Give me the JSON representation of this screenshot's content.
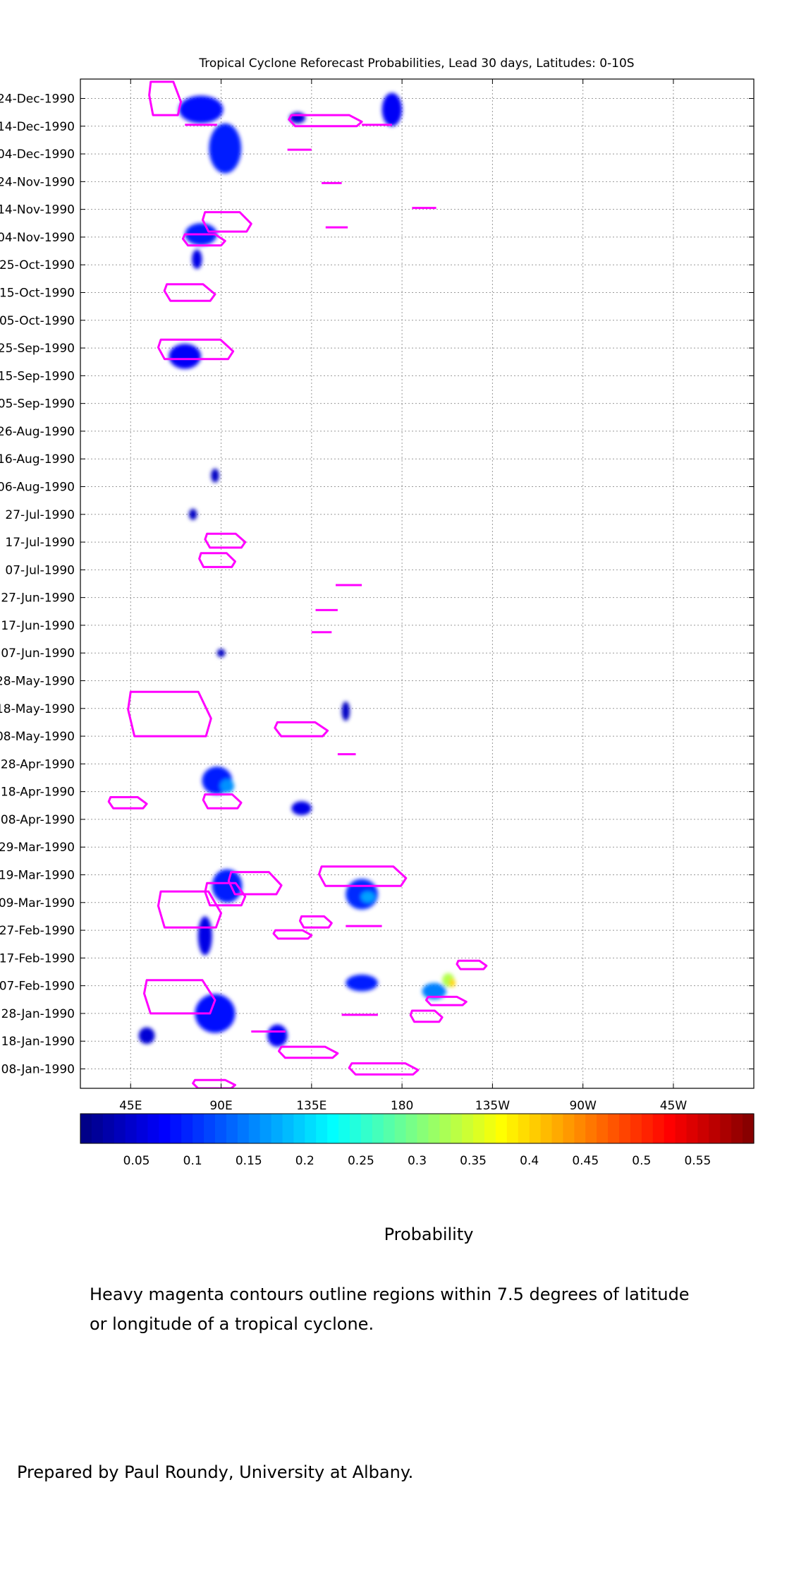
{
  "chart_data": {
    "type": "heatmap",
    "title": "Tropical Cyclone Reforecast Probabilities, Lead 30 days, Latitudes: 0-10S",
    "xlabel": "",
    "ylabel": "",
    "x_ticks": [
      "45E",
      "90E",
      "135E",
      "180",
      "135W",
      "90W",
      "45W"
    ],
    "x_tick_lon": [
      45,
      90,
      135,
      180,
      225,
      270,
      315
    ],
    "xlim_lon": [
      20,
      355
    ],
    "ylim_dates": [
      "1990-01-01",
      "1990-12-31"
    ],
    "y_ticks": [
      "08-Jan-1990",
      "18-Jan-1990",
      "28-Jan-1990",
      "07-Feb-1990",
      "17-Feb-1990",
      "27-Feb-1990",
      "09-Mar-1990",
      "19-Mar-1990",
      "29-Mar-1990",
      "08-Apr-1990",
      "18-Apr-1990",
      "28-Apr-1990",
      "08-May-1990",
      "18-May-1990",
      "28-May-1990",
      "07-Jun-1990",
      "17-Jun-1990",
      "27-Jun-1990",
      "07-Jul-1990",
      "17-Jul-1990",
      "27-Jul-1990",
      "06-Aug-1990",
      "16-Aug-1990",
      "26-Aug-1990",
      "05-Sep-1990",
      "15-Sep-1990",
      "25-Sep-1990",
      "05-Oct-1990",
      "15-Oct-1990",
      "25-Oct-1990",
      "04-Nov-1990",
      "14-Nov-1990",
      "24-Nov-1990",
      "04-Dec-1990",
      "14-Dec-1990",
      "24-Dec-1990"
    ],
    "grid": true,
    "colorbar": {
      "labels": [
        "0.05",
        "0.1",
        "0.15",
        "0.2",
        "0.25",
        "0.3",
        "0.35",
        "0.4",
        "0.45",
        "0.5",
        "0.55"
      ],
      "label_values": [
        0.05,
        0.1,
        0.15,
        0.2,
        0.25,
        0.3,
        0.35,
        0.4,
        0.45,
        0.5,
        0.55
      ],
      "range": [
        0.0,
        0.6
      ],
      "colormap": "jet",
      "title": "Probability"
    },
    "probability_regions": [
      {
        "lon": 80,
        "date": "1990-12-20",
        "dlon": 22,
        "days": 10,
        "p": 0.08
      },
      {
        "lon": 92,
        "date": "1990-12-06",
        "dlon": 16,
        "days": 18,
        "p": 0.09
      },
      {
        "lon": 175,
        "date": "1990-12-20",
        "dlon": 10,
        "days": 12,
        "p": 0.07
      },
      {
        "lon": 128,
        "date": "1990-12-17",
        "dlon": 8,
        "days": 4,
        "p": 0.05
      },
      {
        "lon": 80,
        "date": "1990-11-05",
        "dlon": 16,
        "days": 8,
        "p": 0.09
      },
      {
        "lon": 78,
        "date": "1990-10-27",
        "dlon": 5,
        "days": 7,
        "p": 0.06
      },
      {
        "lon": 72,
        "date": "1990-09-22",
        "dlon": 16,
        "days": 9,
        "p": 0.07
      },
      {
        "lon": 87,
        "date": "1990-08-10",
        "dlon": 4,
        "days": 5,
        "p": 0.04
      },
      {
        "lon": 76,
        "date": "1990-07-27",
        "dlon": 4,
        "days": 4,
        "p": 0.04
      },
      {
        "lon": 90,
        "date": "1990-06-07",
        "dlon": 4,
        "days": 3,
        "p": 0.04
      },
      {
        "lon": 152,
        "date": "1990-05-17",
        "dlon": 4,
        "days": 7,
        "p": 0.04
      },
      {
        "lon": 88,
        "date": "1990-04-22",
        "dlon": 15,
        "days": 10,
        "p": 0.09
      },
      {
        "lon": 93,
        "date": "1990-04-20",
        "dlon": 7,
        "days": 5,
        "p": 0.16
      },
      {
        "lon": 130,
        "date": "1990-04-12",
        "dlon": 10,
        "days": 5,
        "p": 0.06
      },
      {
        "lon": 93,
        "date": "1990-03-15",
        "dlon": 15,
        "days": 12,
        "p": 0.09
      },
      {
        "lon": 160,
        "date": "1990-03-12",
        "dlon": 16,
        "days": 11,
        "p": 0.1
      },
      {
        "lon": 163,
        "date": "1990-03-11",
        "dlon": 7,
        "days": 4,
        "p": 0.17
      },
      {
        "lon": 82,
        "date": "1990-02-25",
        "dlon": 7,
        "days": 14,
        "p": 0.06
      },
      {
        "lon": 160,
        "date": "1990-02-08",
        "dlon": 16,
        "days": 6,
        "p": 0.09
      },
      {
        "lon": 196,
        "date": "1990-02-05",
        "dlon": 12,
        "days": 6,
        "p": 0.15
      },
      {
        "lon": 203,
        "date": "1990-02-09",
        "dlon": 6,
        "days": 5,
        "p": 0.33
      },
      {
        "lon": 205,
        "date": "1990-02-08",
        "dlon": 3,
        "days": 3,
        "p": 0.4
      },
      {
        "lon": 87,
        "date": "1990-01-28",
        "dlon": 20,
        "days": 14,
        "p": 0.08
      },
      {
        "lon": 118,
        "date": "1990-01-20",
        "dlon": 10,
        "days": 8,
        "p": 0.07
      },
      {
        "lon": 53,
        "date": "1990-01-20",
        "dlon": 8,
        "days": 6,
        "p": 0.05
      }
    ],
    "cyclone_contours": [
      {
        "lon1": 55,
        "lon2": 70,
        "date1": "1990-12-18",
        "date2": "1990-12-30"
      },
      {
        "lon1": 72,
        "lon2": 88,
        "date1": "1990-12-14",
        "date2": "1990-12-15"
      },
      {
        "lon1": 125,
        "lon2": 160,
        "date1": "1990-12-14",
        "date2": "1990-12-18"
      },
      {
        "lon1": 160,
        "lon2": 175,
        "date1": "1990-12-14",
        "date2": "1990-12-15"
      },
      {
        "lon1": 123,
        "lon2": 135,
        "date1": "1990-12-05",
        "date2": "1990-12-06"
      },
      {
        "lon1": 140,
        "lon2": 150,
        "date1": "1990-11-23",
        "date2": "1990-11-24"
      },
      {
        "lon1": 185,
        "lon2": 197,
        "date1": "1990-11-14",
        "date2": "1990-11-15"
      },
      {
        "lon1": 142,
        "lon2": 153,
        "date1": "1990-11-07",
        "date2": "1990-11-08"
      },
      {
        "lon1": 82,
        "lon2": 105,
        "date1": "1990-11-06",
        "date2": "1990-11-13"
      },
      {
        "lon1": 72,
        "lon2": 92,
        "date1": "1990-11-01",
        "date2": "1990-11-05"
      },
      {
        "lon1": 63,
        "lon2": 87,
        "date1": "1990-10-12",
        "date2": "1990-10-18"
      },
      {
        "lon1": 60,
        "lon2": 96,
        "date1": "1990-09-21",
        "date2": "1990-09-28"
      },
      {
        "lon1": 83,
        "lon2": 102,
        "date1": "1990-07-15",
        "date2": "1990-07-20"
      },
      {
        "lon1": 80,
        "lon2": 97,
        "date1": "1990-07-08",
        "date2": "1990-07-13"
      },
      {
        "lon1": 147,
        "lon2": 160,
        "date1": "1990-07-01",
        "date2": "1990-07-02"
      },
      {
        "lon1": 137,
        "lon2": 148,
        "date1": "1990-06-22",
        "date2": "1990-06-23"
      },
      {
        "lon1": 135,
        "lon2": 145,
        "date1": "1990-06-14",
        "date2": "1990-06-15"
      },
      {
        "lon1": 45,
        "lon2": 85,
        "date1": "1990-05-08",
        "date2": "1990-05-24"
      },
      {
        "lon1": 118,
        "lon2": 143,
        "date1": "1990-05-08",
        "date2": "1990-05-13"
      },
      {
        "lon1": 148,
        "lon2": 157,
        "date1": "1990-05-01",
        "date2": "1990-05-02"
      },
      {
        "lon1": 35,
        "lon2": 53,
        "date1": "1990-04-12",
        "date2": "1990-04-16"
      },
      {
        "lon1": 82,
        "lon2": 100,
        "date1": "1990-04-12",
        "date2": "1990-04-17"
      },
      {
        "lon1": 140,
        "lon2": 182,
        "date1": "1990-03-15",
        "date2": "1990-03-22"
      },
      {
        "lon1": 95,
        "lon2": 120,
        "date1": "1990-03-12",
        "date2": "1990-03-20"
      },
      {
        "lon1": 83,
        "lon2": 102,
        "date1": "1990-03-08",
        "date2": "1990-03-16"
      },
      {
        "lon1": 60,
        "lon2": 90,
        "date1": "1990-02-28",
        "date2": "1990-03-13"
      },
      {
        "lon1": 117,
        "lon2": 135,
        "date1": "1990-02-24",
        "date2": "1990-02-27"
      },
      {
        "lon1": 130,
        "lon2": 145,
        "date1": "1990-02-28",
        "date2": "1990-03-04"
      },
      {
        "lon1": 152,
        "lon2": 170,
        "date1": "1990-02-28",
        "date2": "1990-03-01"
      },
      {
        "lon1": 53,
        "lon2": 87,
        "date1": "1990-01-28",
        "date2": "1990-02-09"
      },
      {
        "lon1": 208,
        "lon2": 222,
        "date1": "1990-02-13",
        "date2": "1990-02-16"
      },
      {
        "lon1": 193,
        "lon2": 212,
        "date1": "1990-01-31",
        "date2": "1990-02-03"
      },
      {
        "lon1": 185,
        "lon2": 200,
        "date1": "1990-01-25",
        "date2": "1990-01-29"
      },
      {
        "lon1": 150,
        "lon2": 168,
        "date1": "1990-01-27",
        "date2": "1990-01-28"
      },
      {
        "lon1": 120,
        "lon2": 148,
        "date1": "1990-01-12",
        "date2": "1990-01-16"
      },
      {
        "lon1": 105,
        "lon2": 122,
        "date1": "1990-01-21",
        "date2": "1990-01-22"
      },
      {
        "lon1": 155,
        "lon2": 188,
        "date1": "1990-01-06",
        "date2": "1990-01-10"
      },
      {
        "lon1": 77,
        "lon2": 97,
        "date1": "1990-01-01",
        "date2": "1990-01-04"
      }
    ]
  },
  "captions": {
    "colorbar_label": "Probability",
    "note_line1": "Heavy magenta contours outline regions within 7.5 degrees of latitude",
    "note_line2": "or longitude of a tropical cyclone.",
    "credit": "Prepared by Paul Roundy, University at Albany."
  },
  "colors": {
    "contour": "#ff00ff",
    "grid": "#999999",
    "background": "#ffffff"
  }
}
